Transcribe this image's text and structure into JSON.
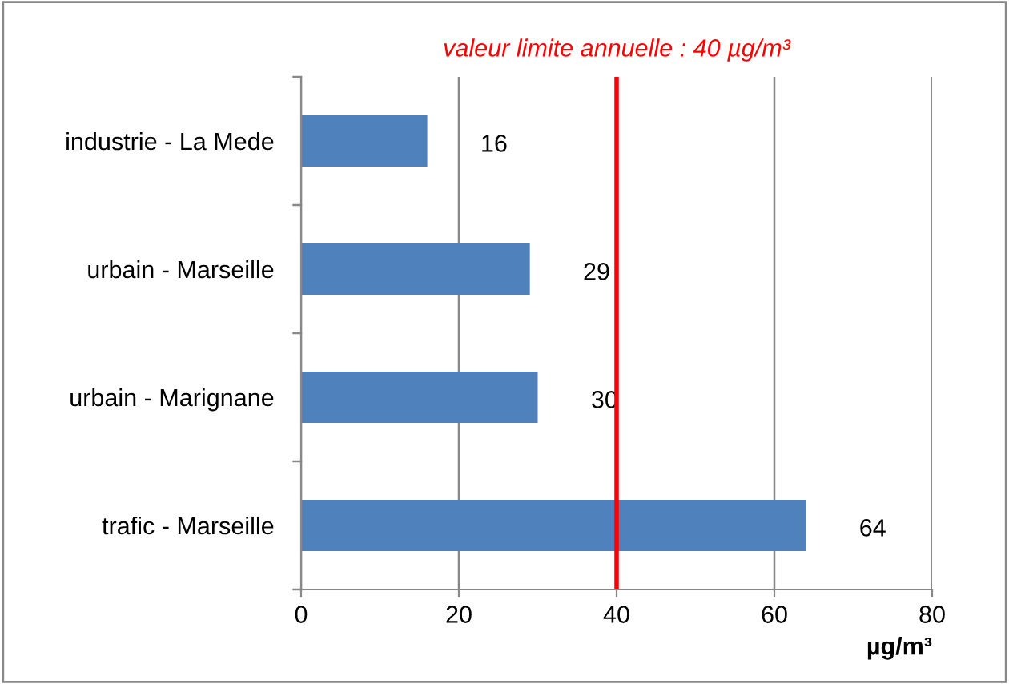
{
  "chart_data": {
    "type": "bar",
    "orientation": "horizontal",
    "categories": [
      "industrie - La Mede",
      "urbain - Marseille",
      "urbain - Marignane",
      "trafic - Marseille"
    ],
    "values": [
      16,
      29,
      30,
      64
    ],
    "color": "#4f81bd",
    "data_labels": true,
    "xlim": [
      0,
      80
    ],
    "xticks": [
      0,
      20,
      40,
      60,
      80
    ],
    "grid": "x",
    "legend": false,
    "xlabel": "µg/m³",
    "ref_lines": [
      {
        "axis": "x",
        "value": 40,
        "label": "valeur limite annuelle : 40 µg/m³",
        "color": "#ff0000"
      }
    ]
  }
}
